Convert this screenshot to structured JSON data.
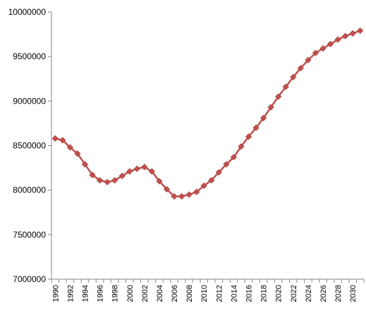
{
  "chart_data": {
    "type": "line",
    "title": "",
    "xlabel": "",
    "ylabel": "",
    "ylim": [
      7000000,
      10000000
    ],
    "ytick_labels": [
      "7000000",
      "7500000",
      "8000000",
      "8500000",
      "9000000",
      "9500000",
      "10000000"
    ],
    "xlim": [
      1990,
      2031
    ],
    "xtick_labels": [
      "1990",
      "1992",
      "1994",
      "1996",
      "1998",
      "2000",
      "2002",
      "2004",
      "2006",
      "2008",
      "2010",
      "2012",
      "2014",
      "2016",
      "2018",
      "2020",
      "2022",
      "2024",
      "2026",
      "2028",
      "2030"
    ],
    "grid": false,
    "legend": false,
    "series": [
      {
        "color": "#C0504D",
        "marker": "diamond",
        "x": [
          1990,
          1991,
          1992,
          1993,
          1994,
          1995,
          1996,
          1997,
          1998,
          1999,
          2000,
          2001,
          2002,
          2003,
          2004,
          2005,
          2006,
          2007,
          2008,
          2009,
          2010,
          2011,
          2012,
          2013,
          2014,
          2015,
          2016,
          2017,
          2018,
          2019,
          2020,
          2021,
          2022,
          2023,
          2024,
          2025,
          2026,
          2027,
          2028,
          2029,
          2030,
          2031
        ],
        "values": [
          8580000,
          8560000,
          8480000,
          8410000,
          8290000,
          8170000,
          8110000,
          8090000,
          8110000,
          8160000,
          8210000,
          8240000,
          8260000,
          8210000,
          8100000,
          8010000,
          7930000,
          7930000,
          7950000,
          7980000,
          8050000,
          8110000,
          8200000,
          8290000,
          8370000,
          8490000,
          8600000,
          8700000,
          8810000,
          8930000,
          9050000,
          9160000,
          9270000,
          9370000,
          9460000,
          9540000,
          9590000,
          9640000,
          9690000,
          9730000,
          9760000,
          9790000
        ]
      }
    ]
  }
}
